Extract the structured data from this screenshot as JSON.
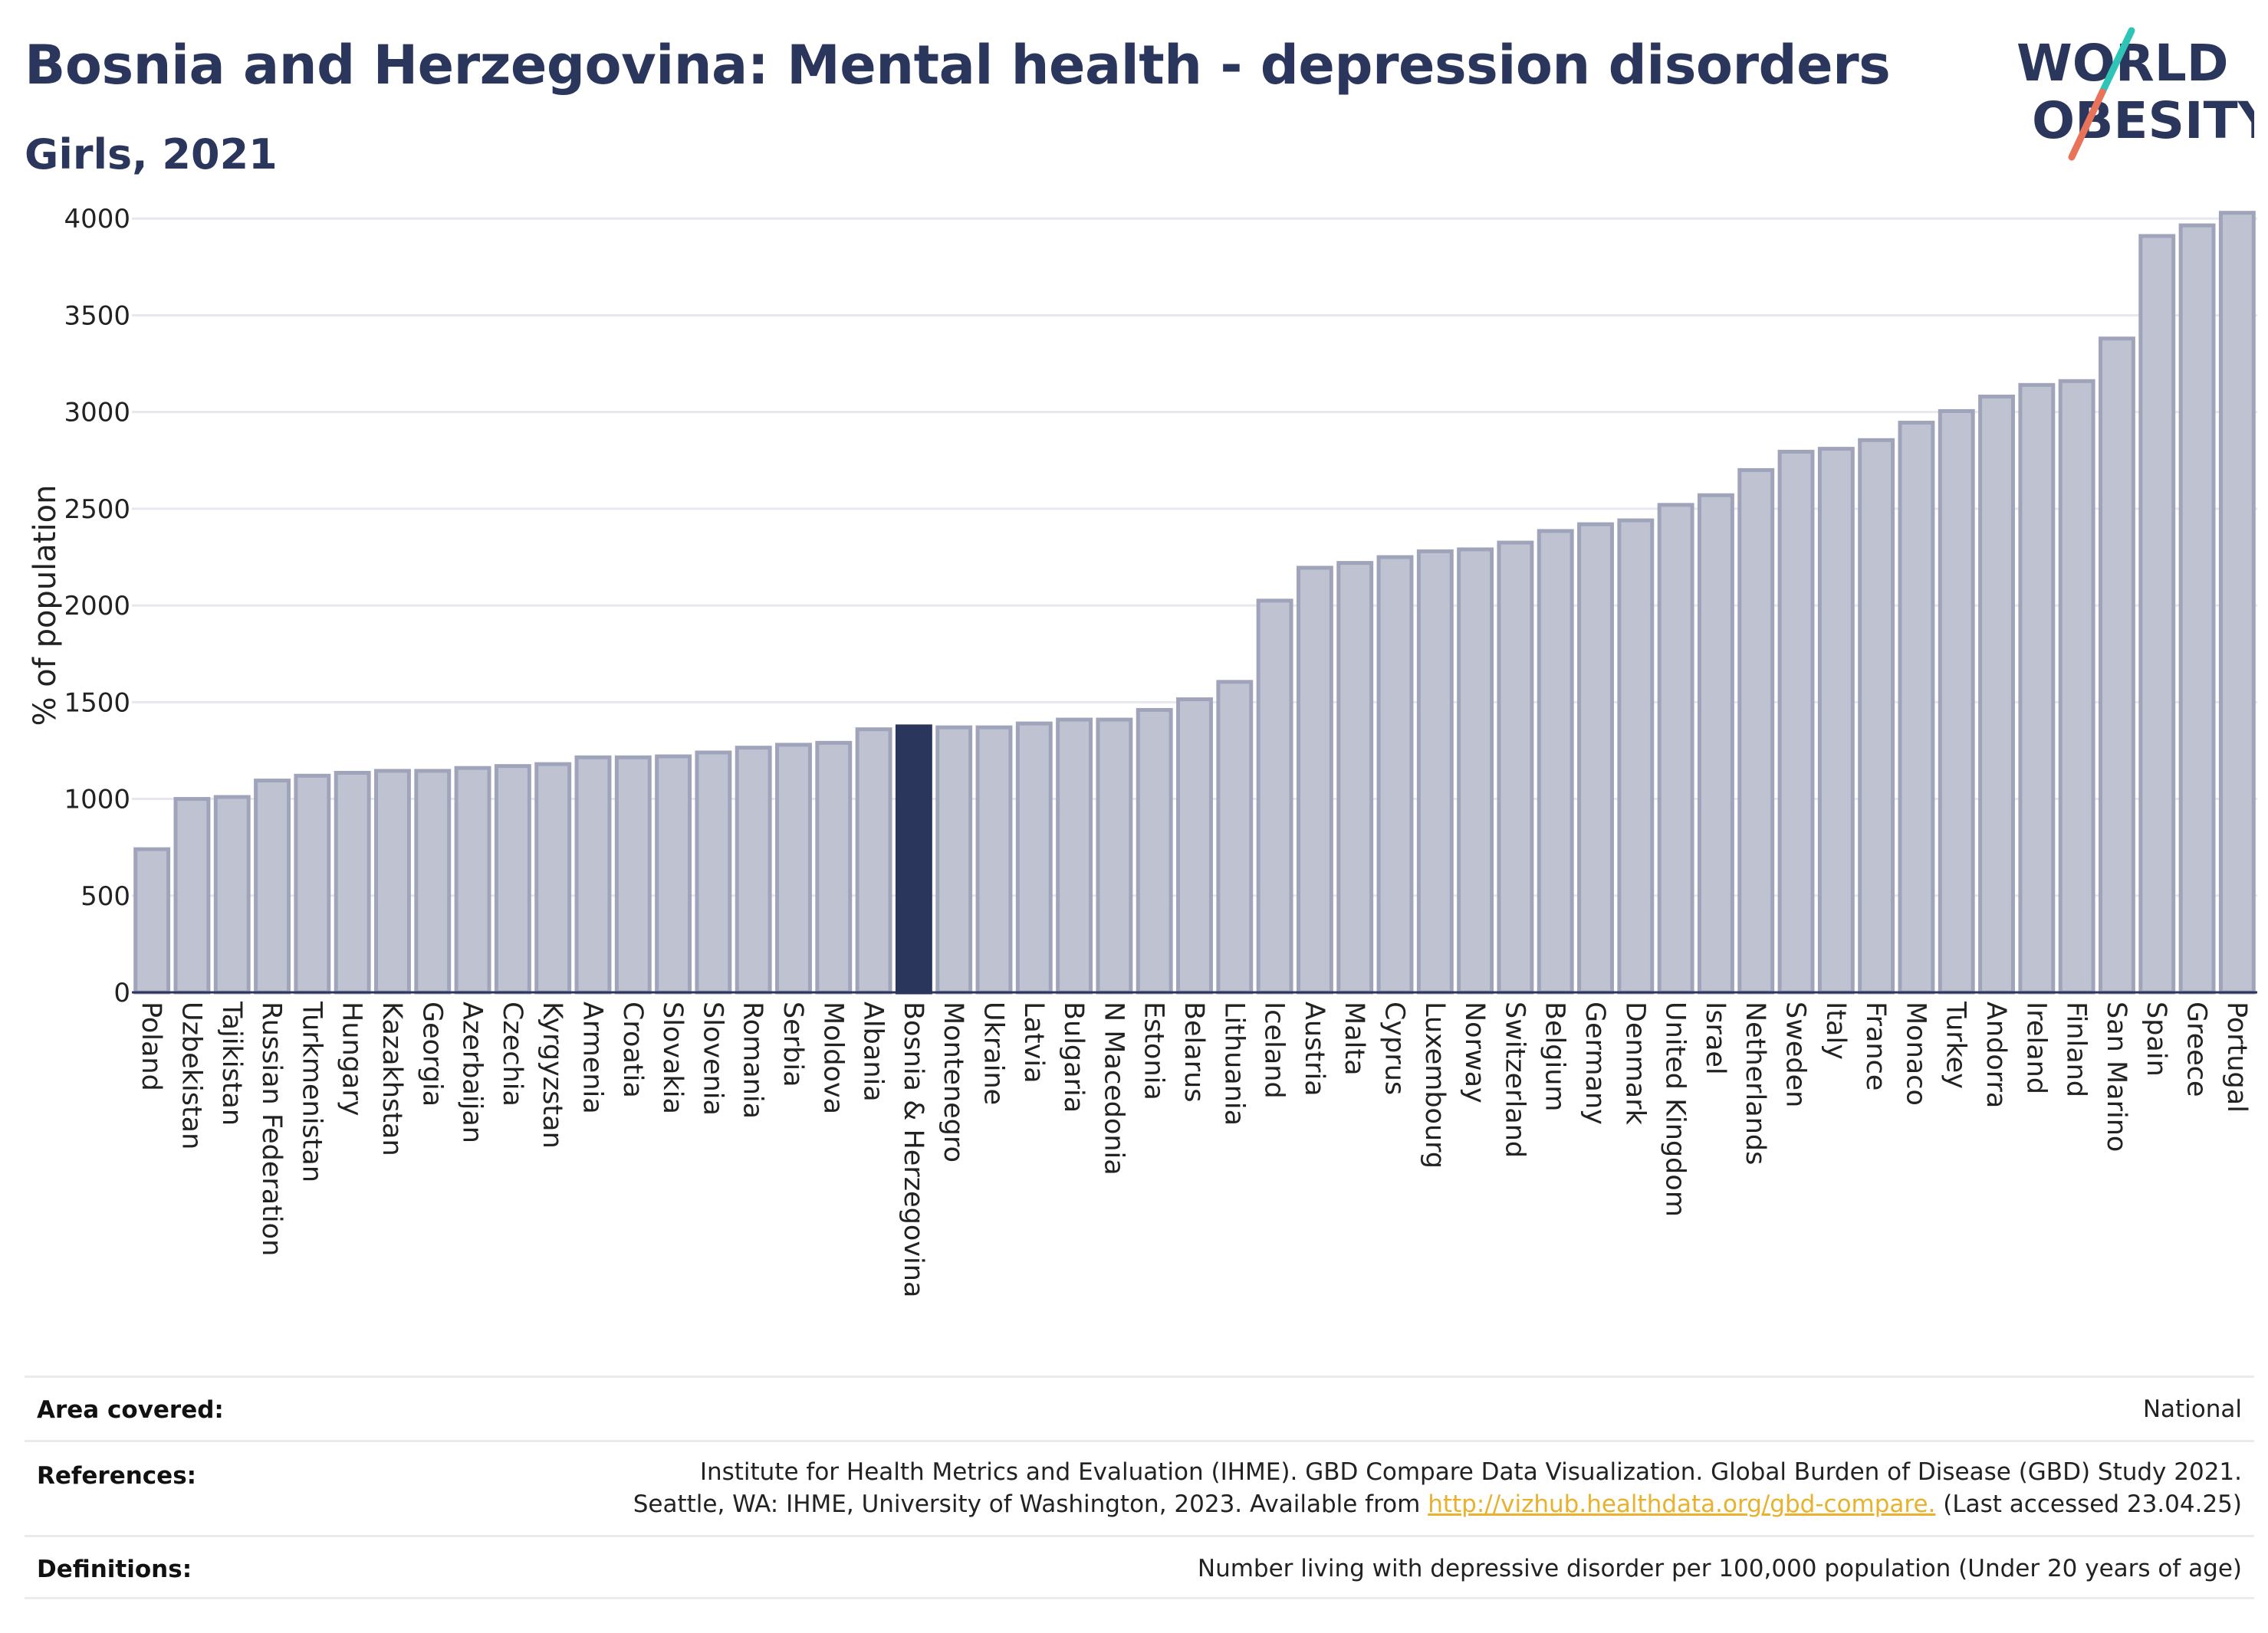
{
  "header": {
    "title": "Bosnia and Herzegovina: Mental health - depression disorders",
    "subtitle": "Girls, 2021"
  },
  "logo": {
    "line1": "WORLD",
    "line2": "OBESITY",
    "colors": {
      "text": "#2b365c",
      "slash_teal": "#2ec4b6",
      "slash_coral": "#e8735a"
    }
  },
  "chart_data": {
    "type": "bar",
    "ylabel": "% of population",
    "xlabel": "",
    "ylim": [
      0,
      4100
    ],
    "yticks": [
      0,
      500,
      1000,
      1500,
      2000,
      2500,
      3000,
      3500,
      4000
    ],
    "grid": true,
    "highlight": "Bosnia & Herzegovina",
    "colors": {
      "bar": "#bfc3d1",
      "bar_edge": "#9fa4ba",
      "highlight": "#2b365c"
    },
    "categories": [
      "Poland",
      "Uzbekistan",
      "Tajikistan",
      "Russian Federation",
      "Turkmenistan",
      "Hungary",
      "Kazakhstan",
      "Georgia",
      "Azerbaijan",
      "Czechia",
      "Kyrgyzstan",
      "Armenia",
      "Croatia",
      "Slovakia",
      "Slovenia",
      "Romania",
      "Serbia",
      "Moldova",
      "Albania",
      "Bosnia & Herzegovina",
      "Montenegro",
      "Ukraine",
      "Latvia",
      "Bulgaria",
      "N Macedonia",
      "Estonia",
      "Belarus",
      "Lithuania",
      "Iceland",
      "Austria",
      "Malta",
      "Cyprus",
      "Luxembourg",
      "Norway",
      "Switzerland",
      "Belgium",
      "Germany",
      "Denmark",
      "United Kingdom",
      "Israel",
      "Netherlands",
      "Sweden",
      "Italy",
      "France",
      "Monaco",
      "Turkey",
      "Andorra",
      "Ireland",
      "Finland",
      "San Marino",
      "Spain",
      "Greece",
      "Portugal"
    ],
    "values": [
      740,
      1000,
      1010,
      1095,
      1120,
      1135,
      1145,
      1145,
      1160,
      1170,
      1180,
      1215,
      1215,
      1220,
      1240,
      1265,
      1280,
      1290,
      1360,
      1375,
      1370,
      1370,
      1390,
      1410,
      1410,
      1460,
      1515,
      1605,
      2025,
      2195,
      2220,
      2250,
      2280,
      2290,
      2325,
      2385,
      2420,
      2440,
      2520,
      2570,
      2700,
      2795,
      2810,
      2855,
      2945,
      3005,
      3080,
      3140,
      3160,
      3380,
      3910,
      3965,
      4030
    ]
  },
  "footer": {
    "area_label": "Area covered:",
    "area_value": "National",
    "references_label": "References:",
    "references_line1": "Institute for Health Metrics and Evaluation (IHME). GBD Compare Data Visualization. Global Burden of Disease (GBD) Study 2021.",
    "references_line2_pre": "Seattle, WA: IHME, University of Washington, 2023. Available from ",
    "references_link": "http://vizhub.healthdata.org/gbd-compare.",
    "references_line2_post": " (Last accessed 23.04.25)",
    "definitions_label": "Definitions:",
    "definitions_value": "Number living with depressive disorder per 100,000 population (Under 20 years of age)"
  }
}
